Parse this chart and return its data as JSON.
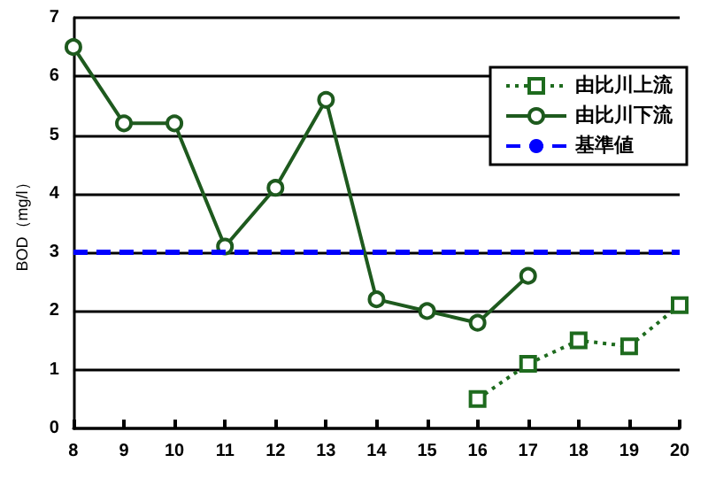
{
  "chart_data": {
    "type": "line",
    "ylabel": "BOD（mg/l）",
    "series": [
      {
        "name": "由比川上流",
        "color": "#1e6b1e",
        "marker": "square",
        "line_style": "dotted",
        "x": [
          16,
          17,
          18,
          19,
          20
        ],
        "values": [
          0.5,
          1.1,
          1.5,
          1.4,
          2.1
        ]
      },
      {
        "name": "由比川下流",
        "color": "#1e5a1e",
        "marker": "circle",
        "line_style": "solid",
        "x": [
          8,
          9,
          10,
          11,
          12,
          13,
          14,
          15,
          16,
          17
        ],
        "values": [
          6.5,
          5.2,
          5.2,
          3.1,
          4.1,
          5.6,
          2.2,
          2.0,
          1.8,
          2.6
        ]
      }
    ],
    "ref_lines": [
      {
        "axis": "y",
        "value": 3,
        "label": "基準値",
        "color": "#0000ff",
        "line_style": "dashed"
      }
    ],
    "xlim": [
      8,
      20
    ],
    "xticks": [
      8,
      9,
      10,
      11,
      12,
      13,
      14,
      15,
      16,
      17,
      18,
      19,
      20
    ],
    "ylim": [
      0,
      7
    ],
    "yticks": [
      0,
      1,
      2,
      3,
      4,
      5,
      6,
      7
    ],
    "grid": "y",
    "legend": "top right"
  }
}
